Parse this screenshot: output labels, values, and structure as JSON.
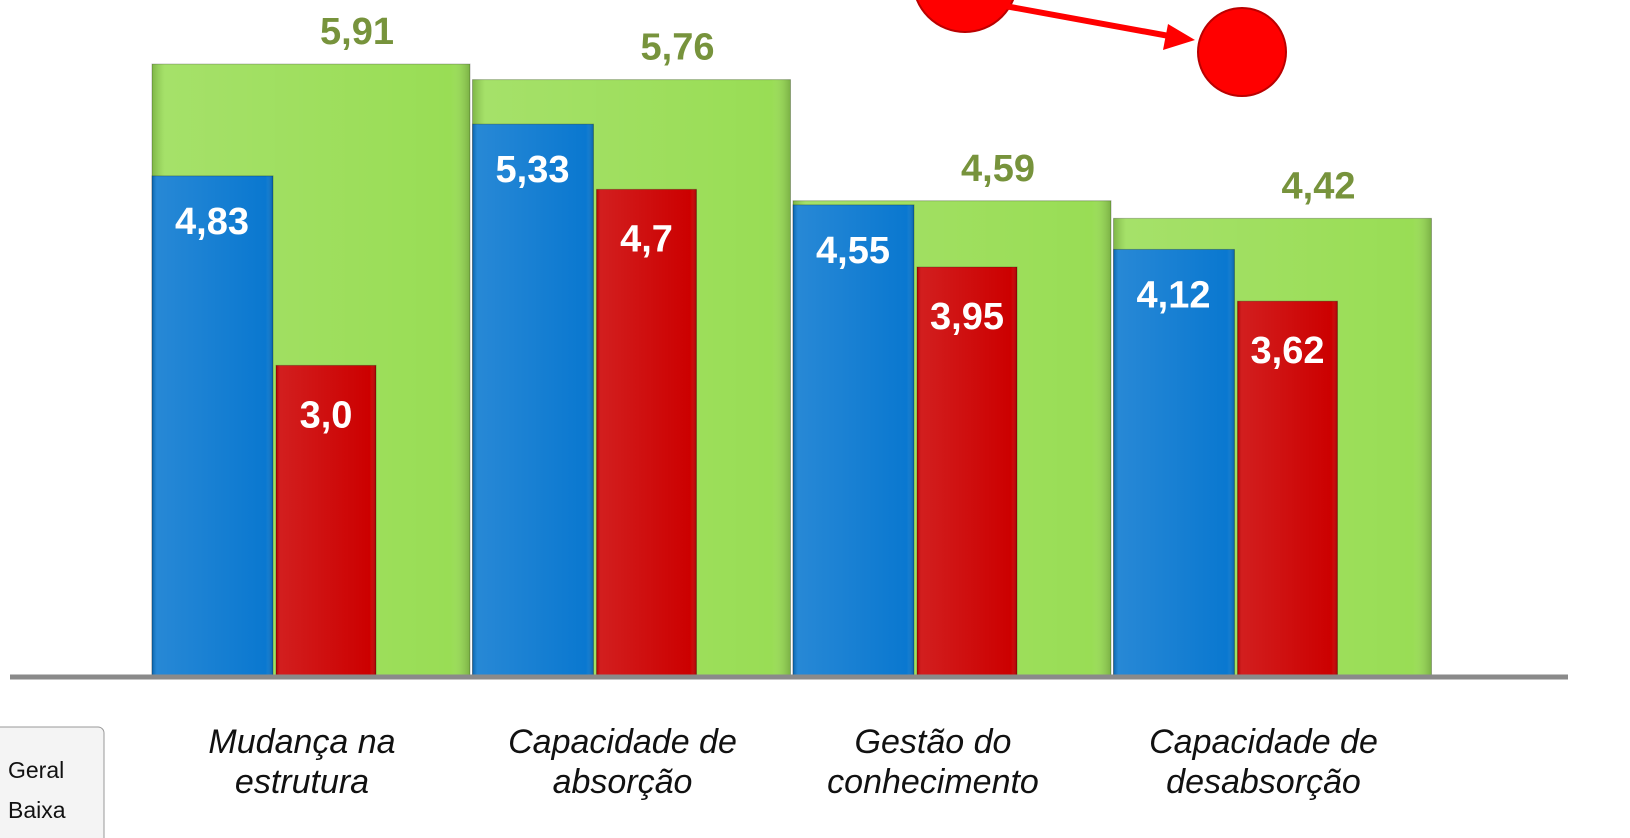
{
  "chart_data": {
    "type": "bar",
    "categories": [
      "Mudança na\nestrutura",
      "Capacidade de\nabsorção",
      "Gestão do\nconhecimento",
      "Capacidade de\ndesabsorção"
    ],
    "series": [
      {
        "name": "Geral",
        "color": "#99dd55",
        "label_color": "#77933c",
        "values": [
          5.91,
          5.76,
          4.59,
          4.42
        ],
        "value_labels": [
          "5,91",
          "5,76",
          "4,59",
          "4,42"
        ]
      },
      {
        "color": "#0a78d0",
        "values": [
          4.83,
          5.33,
          4.55,
          4.12
        ],
        "value_labels": [
          "4,83",
          "5,33",
          "4,55",
          "4,12"
        ]
      },
      {
        "name": "Baixa",
        "color": "#cc0000",
        "values": [
          3.0,
          4.7,
          3.95,
          3.62
        ],
        "value_labels": [
          "3,0",
          "4,7",
          "3,95",
          "3,62"
        ]
      }
    ],
    "ylim": [
      0,
      6.5
    ]
  }
}
